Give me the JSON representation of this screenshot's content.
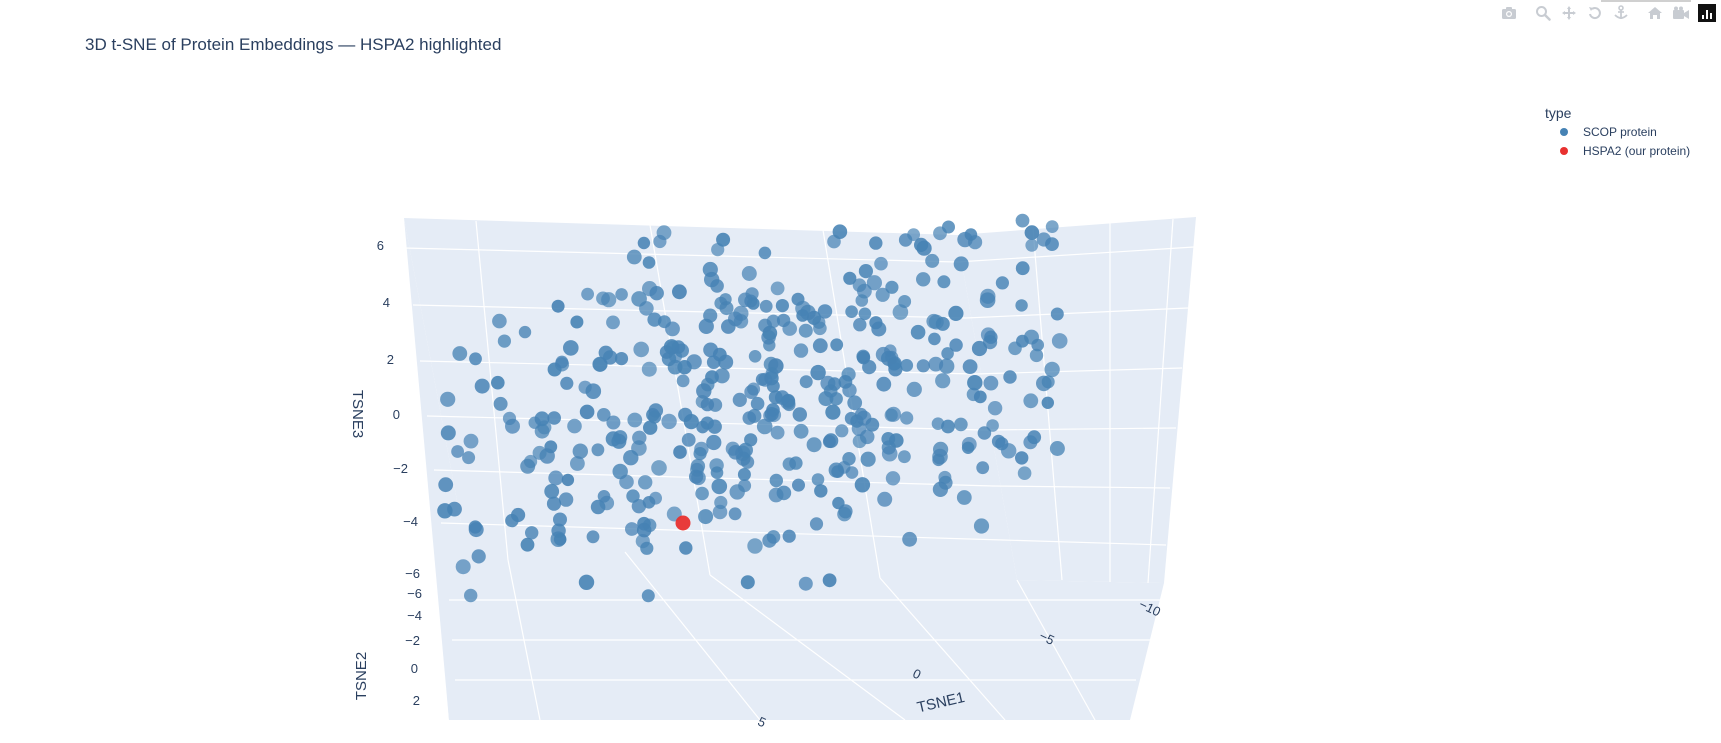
{
  "chart_data": {
    "type": "scatter3d",
    "title": "3D t-SNE of Protein Embeddings — HSPA2 highlighted",
    "axes": {
      "x": {
        "label": "TSNE1",
        "ticks": [
          "5",
          "0",
          "−5",
          "−10"
        ]
      },
      "y": {
        "label": "TSNE2",
        "ticks": [
          "−6",
          "−4",
          "−2",
          "0",
          "2"
        ]
      },
      "z": {
        "label": "TSNE3",
        "ticks": [
          "6",
          "4",
          "2",
          "0",
          "−2",
          "−4",
          "−6"
        ]
      }
    },
    "legend": {
      "title": "type",
      "placement": "top-right",
      "items": [
        {
          "label": "SCOP protein",
          "color": "#4682b4"
        },
        {
          "label": "HSPA2 (our protein)",
          "color": "#e8312f"
        }
      ]
    },
    "series": [
      {
        "name": "SCOP protein",
        "color": "#4682b4",
        "point_count": 420
      },
      {
        "name": "HSPA2 (our protein)",
        "color": "#e8312f",
        "point_count": 1
      }
    ],
    "background": "#e5ecf6",
    "grid": true
  },
  "modebar": {
    "buttons": [
      "camera-icon",
      "zoom-icon",
      "pan-icon",
      "orbit-rotation-icon",
      "turntable-rotation-icon",
      "reset-camera-icon",
      "last-save-camera-icon",
      "plotly-logo-icon"
    ]
  }
}
